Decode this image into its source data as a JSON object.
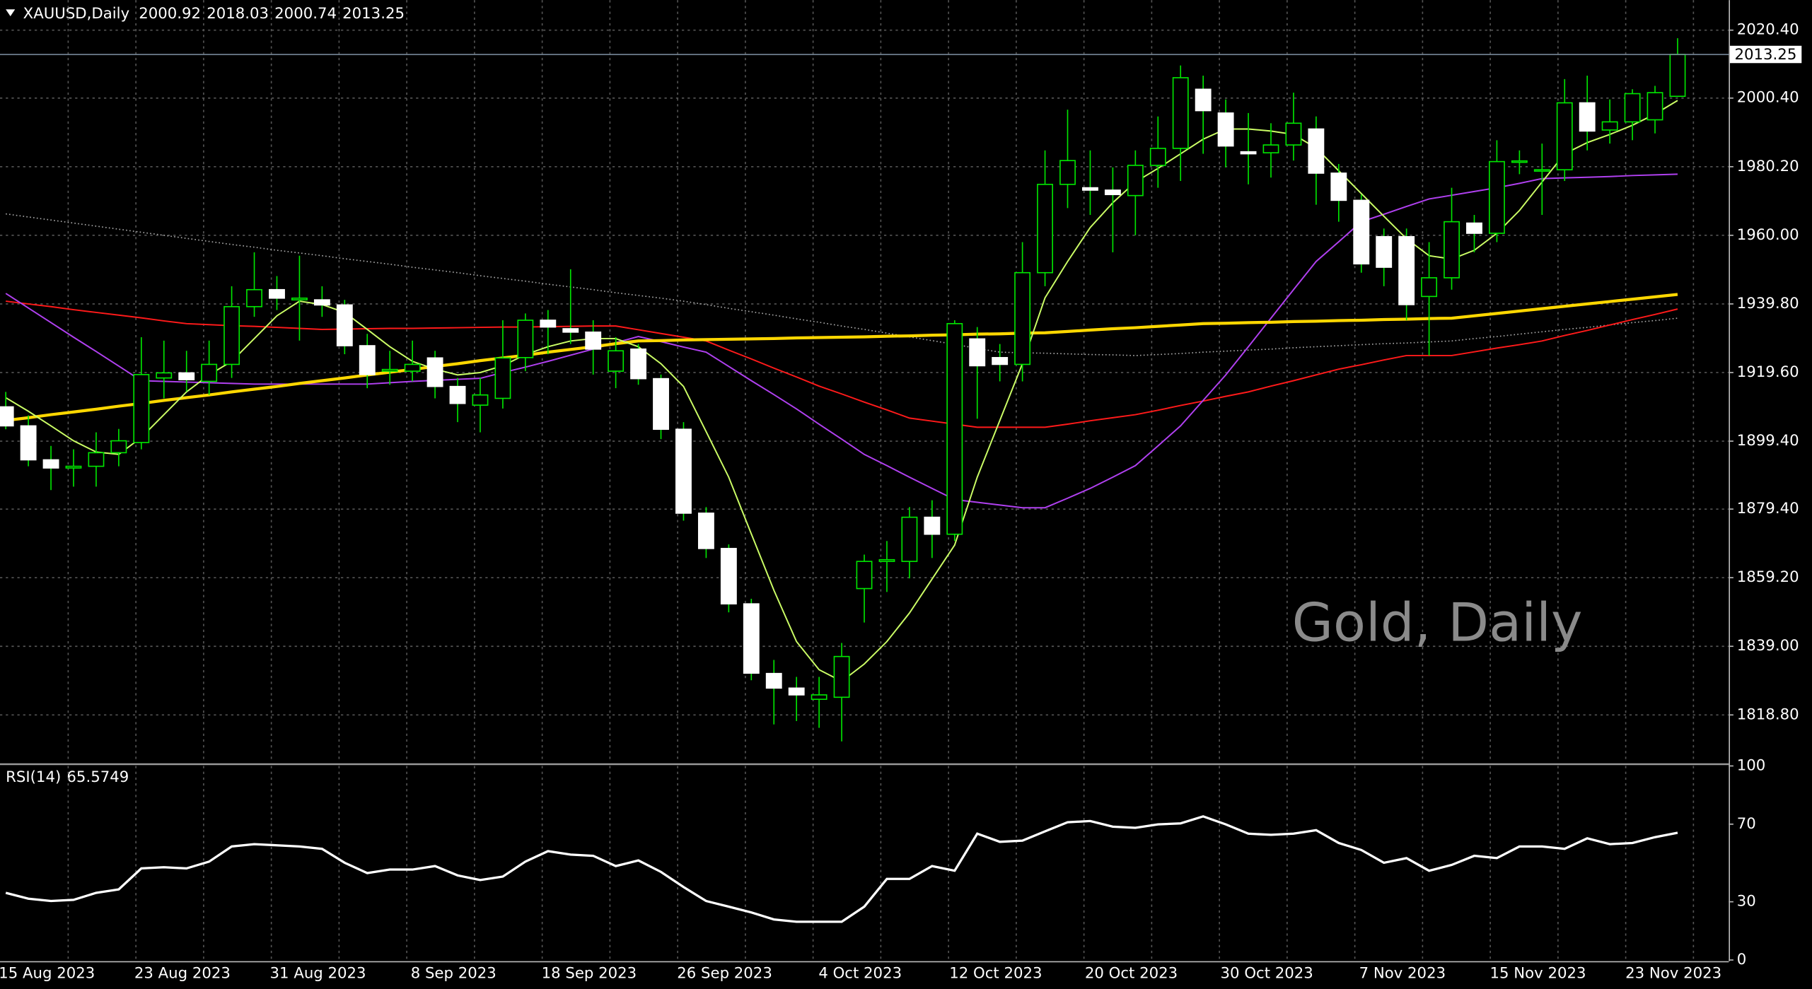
{
  "symbol": "XAUUSD,Daily",
  "chart_data": [
    {
      "type": "candlestick",
      "annotation": "Gold, Daily",
      "categories": [
        null,
        "15 Aug 2023",
        null,
        null,
        null,
        null,
        null,
        "23 Aug 2023",
        null,
        null,
        null,
        null,
        null,
        "31 Aug 2023",
        null,
        null,
        null,
        null,
        null,
        "8 Sep 2023",
        null,
        null,
        null,
        null,
        null,
        "18 Sep 2023",
        null,
        null,
        null,
        null,
        null,
        "26 Sep 2023",
        null,
        null,
        null,
        null,
        null,
        "4 Oct 2023",
        null,
        null,
        null,
        null,
        null,
        "12 Oct 2023",
        null,
        null,
        null,
        null,
        null,
        "20 Oct 2023",
        null,
        null,
        null,
        null,
        null,
        "30 Oct 2023",
        null,
        null,
        null,
        null,
        null,
        "7 Nov 2023",
        null,
        null,
        null,
        null,
        null,
        "15 Nov 2023",
        null,
        null,
        null,
        null,
        null,
        "23 Nov 2023",
        null
      ],
      "open": [
        1909.5,
        1903.9,
        1893.9,
        1891.5,
        1892,
        1896,
        1899,
        1918,
        1919.5,
        1917,
        1922,
        1939,
        1944,
        1941,
        1941,
        1939.5,
        1927.5,
        1920,
        1920,
        1923.9,
        1915.5,
        1910,
        1912,
        1924,
        1935,
        1932.5,
        1931.5,
        1920,
        1926.5,
        1917.8,
        1902.9,
        1878.2,
        1867.8,
        1851.5,
        1831,
        1826.7,
        1823.4,
        1824,
        1856,
        1864,
        1864,
        1877,
        1872,
        1929.5,
        1924,
        1922,
        1949,
        1975,
        1974,
        1973.3,
        1971.7,
        1980.6,
        1985.6,
        2003,
        1996,
        1984.6,
        1984.3,
        1986.6,
        1991.3,
        1978.3,
        1970.3,
        1959.6,
        1959.6,
        1942,
        1947.5,
        1963.6,
        1960.6,
        1981.7,
        1979,
        1979.3,
        1999,
        1991,
        1993.4,
        1994,
        2000.92
      ],
      "high": [
        1913.9,
        1907,
        1898,
        1897,
        1902,
        1903,
        1930,
        1929,
        1926,
        1929,
        1945,
        1955,
        1948,
        1954,
        1945,
        1941,
        1931,
        1926,
        1929,
        1926,
        1918,
        1918,
        1935,
        1937,
        1938,
        1950,
        1935,
        1930,
        1928,
        1919,
        1905,
        1880,
        1869,
        1853,
        1835,
        1830,
        1830,
        1840,
        1866,
        1870,
        1880,
        1882,
        1935,
        1933,
        1928,
        1958,
        1985,
        1997,
        1985,
        1980,
        1985,
        1995,
        2010,
        2007,
        2000,
        1996,
        1993,
        2002,
        1995,
        1981,
        1972,
        1962,
        1962,
        1958,
        1974,
        1966,
        1988,
        1985,
        1987,
        2006,
        2007,
        2000,
        2003,
        2004,
        2018.03
      ],
      "low": [
        1902.9,
        1892,
        1885,
        1886,
        1886,
        1892,
        1897,
        1912,
        1914,
        1913,
        1918,
        1936,
        1938,
        1929,
        1936,
        1925,
        1915,
        1916,
        1917,
        1912,
        1905,
        1902,
        1909,
        1920,
        1925,
        1928,
        1919,
        1915,
        1916,
        1900,
        1876,
        1865,
        1849,
        1829,
        1816,
        1817,
        1815,
        1811,
        1846,
        1855,
        1859,
        1865,
        1870,
        1906,
        1917,
        1917,
        1945,
        1968,
        1966,
        1955,
        1960,
        1974,
        1976,
        1984,
        1980,
        1975,
        1977,
        1982,
        1969,
        1964,
        1949,
        1945,
        1935,
        1924.6,
        1944,
        1955,
        1958,
        1978,
        1966,
        1976,
        1985,
        1987,
        1988,
        1990,
        2000.74
      ],
      "close": [
        1903.9,
        1893.9,
        1891.5,
        1892,
        1896,
        1899.5,
        1919,
        1919.5,
        1917.5,
        1922,
        1939,
        1944,
        1941.5,
        1941.5,
        1939.5,
        1927.5,
        1919,
        1920.5,
        1922,
        1915.5,
        1910.5,
        1913,
        1923.9,
        1935,
        1933,
        1931.5,
        1926.5,
        1926,
        1917.8,
        1902.9,
        1878.2,
        1867.8,
        1851.5,
        1831.1,
        1826.7,
        1824.7,
        1824.7,
        1836,
        1864,
        1864.5,
        1877,
        1872,
        1934,
        1921.6,
        1922,
        1949,
        1975,
        1982,
        1973.3,
        1972,
        1980.6,
        1985.6,
        2006.4,
        1996.7,
        1986.3,
        1984,
        1986.6,
        1993,
        1978.3,
        1970.3,
        1951.6,
        1950.6,
        1939.6,
        1947.5,
        1964,
        1960.6,
        1981.7,
        1981.9,
        1979.3,
        1999,
        1990.7,
        1993.4,
        2001.7,
        2002,
        2013.25
      ],
      "up_color": "#000000",
      "down_color": "#ffffff",
      "wick_color": "#00e600",
      "overlays": [
        {
          "color": "#aaaaaa",
          "style": "dotted",
          "values": [
            1966.3,
            1965.4,
            1964.5,
            1963.6,
            1962.7,
            1961.8,
            1960.9,
            1960,
            1959.1,
            1958.2,
            1957.3,
            1956.5,
            1955.6,
            1954.8,
            1954,
            1953.1,
            1952.3,
            1951.5,
            1950.6,
            1949.8,
            1949,
            1948.1,
            1947.3,
            1946.5,
            1945.6,
            1944.8,
            1944,
            1943.1,
            1942.3,
            1941.5,
            1940.6,
            1939.6,
            1938.5,
            1937.5,
            1936.5,
            1935.4,
            1934.4,
            1933.3,
            1932.3,
            1931.2,
            1930.1,
            1929,
            1927.9,
            1926.7,
            1925.6,
            1925.4,
            1925.3,
            1925.1,
            1924.9,
            1924.8,
            1924.6,
            1924.9,
            1925.2,
            1925.6,
            1925.9,
            1926.2,
            1926.5,
            1926.9,
            1927.2,
            1927.5,
            1927.8,
            1928.1,
            1928.3,
            1928.6,
            1928.9,
            1929.6,
            1930.2,
            1930.9,
            1931.6,
            1932.3,
            1932.9,
            1933.6,
            1934.3,
            1934.9,
            1935.6
          ]
        },
        {
          "color": "#ff1a1a",
          "style": "solid",
          "values": [
            1940.6,
            1939.8,
            1939,
            1938.1,
            1937.3,
            1936.5,
            1935.7,
            1934.8,
            1934,
            1933.7,
            1933.4,
            1933.2,
            1932.9,
            1932.6,
            1932.3,
            1932.4,
            1932.5,
            1932.6,
            1932.6,
            1932.7,
            1932.8,
            1932.9,
            1933,
            1933,
            1933.1,
            1933.2,
            1933.3,
            1933.3,
            1932.2,
            1931.1,
            1930,
            1928.9,
            1926.2,
            1923.6,
            1920.9,
            1918.3,
            1915.6,
            1913.3,
            1910.9,
            1908.6,
            1906.2,
            1905.3,
            1904.4,
            1903.5,
            1903.5,
            1903.5,
            1903.5,
            1904.4,
            1905.4,
            1906.3,
            1907.2,
            1908.5,
            1909.9,
            1911.2,
            1912.6,
            1913.9,
            1915.6,
            1917.2,
            1918.9,
            1920.6,
            1921.9,
            1923.3,
            1924.6,
            1924.6,
            1924.6,
            1925.7,
            1926.8,
            1927.8,
            1928.9,
            1930.5,
            1932,
            1933.6,
            1935.2,
            1936.7,
            1938.3
          ]
        },
        {
          "color": "#b040f0",
          "style": "solid",
          "values": [
            1942.9,
            1938.6,
            1934.3,
            1930,
            1925.8,
            1921.5,
            1917.2,
            1917,
            1916.8,
            1916.6,
            1916.4,
            1916.2,
            1916.2,
            1916.2,
            1916.2,
            1916.2,
            1916.2,
            1916.6,
            1917,
            1917.3,
            1917.6,
            1917.9,
            1919.6,
            1921.2,
            1922.9,
            1924.7,
            1926.5,
            1928.4,
            1930.2,
            1928.7,
            1927.1,
            1925.6,
            1921.4,
            1917.2,
            1913.1,
            1908.9,
            1904.4,
            1900,
            1895.5,
            1892.2,
            1888.8,
            1885.5,
            1882.2,
            1881.4,
            1880.6,
            1879.8,
            1879.8,
            1882.6,
            1885.5,
            1888.8,
            1892.2,
            1898,
            1903.9,
            1911.4,
            1918.9,
            1927.2,
            1935.6,
            1944,
            1952.3,
            1958.1,
            1964,
            1966.2,
            1968.5,
            1970.7,
            1971.8,
            1972.9,
            1974,
            1975.3,
            1976.7,
            1976.9,
            1977.1,
            1977.3,
            1977.6,
            1977.8,
            1978
          ]
        },
        {
          "color": "#ffd700",
          "style": "thick",
          "values": [
            1905.5,
            1906.3,
            1907.2,
            1908,
            1908.8,
            1909.7,
            1910.5,
            1911.4,
            1912.2,
            1913,
            1913.9,
            1914.7,
            1915.5,
            1916.4,
            1917.2,
            1918,
            1918.9,
            1919.7,
            1920.5,
            1921.4,
            1922.2,
            1923.1,
            1923.9,
            1924.7,
            1925.6,
            1926.4,
            1927.2,
            1928.1,
            1928.9,
            1929,
            1929.2,
            1929.3,
            1929.4,
            1929.5,
            1929.6,
            1929.8,
            1929.9,
            1930,
            1930.1,
            1930.3,
            1930.4,
            1930.6,
            1930.7,
            1930.9,
            1931,
            1931.2,
            1931.3,
            1931.7,
            1932.1,
            1932.5,
            1932.8,
            1933.2,
            1933.6,
            1934,
            1934.1,
            1934.3,
            1934.4,
            1934.6,
            1934.7,
            1934.9,
            1935,
            1935.2,
            1935.3,
            1935.5,
            1935.6,
            1936.3,
            1937,
            1937.7,
            1938.4,
            1939.1,
            1939.8,
            1940.5,
            1941.2,
            1941.9,
            1942.6
          ]
        },
        {
          "color": "#ccff66",
          "style": "solid",
          "values": [
            1912.2,
            1908.2,
            1903.9,
            1899.5,
            1896.2,
            1895.5,
            1900.5,
            1907.2,
            1913.9,
            1918.9,
            1922.9,
            1929.6,
            1936.3,
            1940.6,
            1939.6,
            1937.3,
            1932.3,
            1927.2,
            1922.9,
            1920.6,
            1918.9,
            1919.6,
            1921.6,
            1924.9,
            1927.2,
            1928.9,
            1929.6,
            1929.6,
            1927.2,
            1922.2,
            1915.5,
            1902.2,
            1888.8,
            1872.1,
            1855.5,
            1840.4,
            1832.1,
            1828.7,
            1833.8,
            1840.4,
            1848.8,
            1858.8,
            1868.8,
            1888.8,
            1905.5,
            1922.2,
            1941.6,
            1952.3,
            1962.3,
            1969.6,
            1975.7,
            1979.7,
            1984,
            1988.3,
            1991.3,
            1991.3,
            1990.7,
            1989.7,
            1985.7,
            1979,
            1972.3,
            1965.6,
            1959,
            1954,
            1953,
            1955.6,
            1960.6,
            1967.3,
            1975.7,
            1984,
            1987.3,
            1989.7,
            1992.4,
            1995.7,
            1999.7
          ]
        }
      ],
      "ylim": [
        1804.8,
        2029.24
      ],
      "yticks": [
        {
          "value": 2020.4,
          "label": "2020.40"
        },
        {
          "value": 2000.4,
          "label": "2000.40"
        },
        {
          "value": 1980.2,
          "label": "1980.20"
        },
        {
          "value": 1960.0,
          "label": "1960.00"
        },
        {
          "value": 1939.8,
          "label": "1939.80"
        },
        {
          "value": 1919.6,
          "label": "1919.60"
        },
        {
          "value": 1899.4,
          "label": "1899.40"
        },
        {
          "value": 1879.4,
          "label": "1879.40"
        },
        {
          "value": 1859.2,
          "label": "1859.20"
        },
        {
          "value": 1839.0,
          "label": "1839.00"
        },
        {
          "value": 1818.8,
          "label": "1818.80"
        }
      ],
      "grid": true
    },
    {
      "type": "line",
      "title": "RSI(14)",
      "color": "#ffffff",
      "values": [
        34.6,
        31.6,
        30.4,
        31,
        34.6,
        36.4,
        47.2,
        47.8,
        47.2,
        50.7,
        58.5,
        59.7,
        59.1,
        58.5,
        57.3,
        50.1,
        44.8,
        46.6,
        46.6,
        48.4,
        43.6,
        41.2,
        43,
        50.7,
        56.1,
        54.3,
        53.7,
        48.4,
        51.3,
        45.4,
        37.6,
        30.4,
        27.5,
        24.5,
        20.9,
        19.7,
        19.7,
        19.7,
        27.5,
        41.8,
        41.8,
        48.4,
        46,
        65.1,
        60.9,
        61.5,
        66.3,
        71,
        71.6,
        68.7,
        68.1,
        69.9,
        70.4,
        74,
        69.9,
        65.1,
        64.5,
        65.1,
        66.9,
        60.3,
        56.7,
        50.1,
        52.5,
        46,
        49,
        53.7,
        52.5,
        58.5,
        58.5,
        57.3,
        62.7,
        59.7,
        60.3,
        63.3,
        65.5749
      ],
      "ylim": [
        0,
        100
      ],
      "yticks": [
        0,
        30,
        70,
        100
      ]
    }
  ]
}
